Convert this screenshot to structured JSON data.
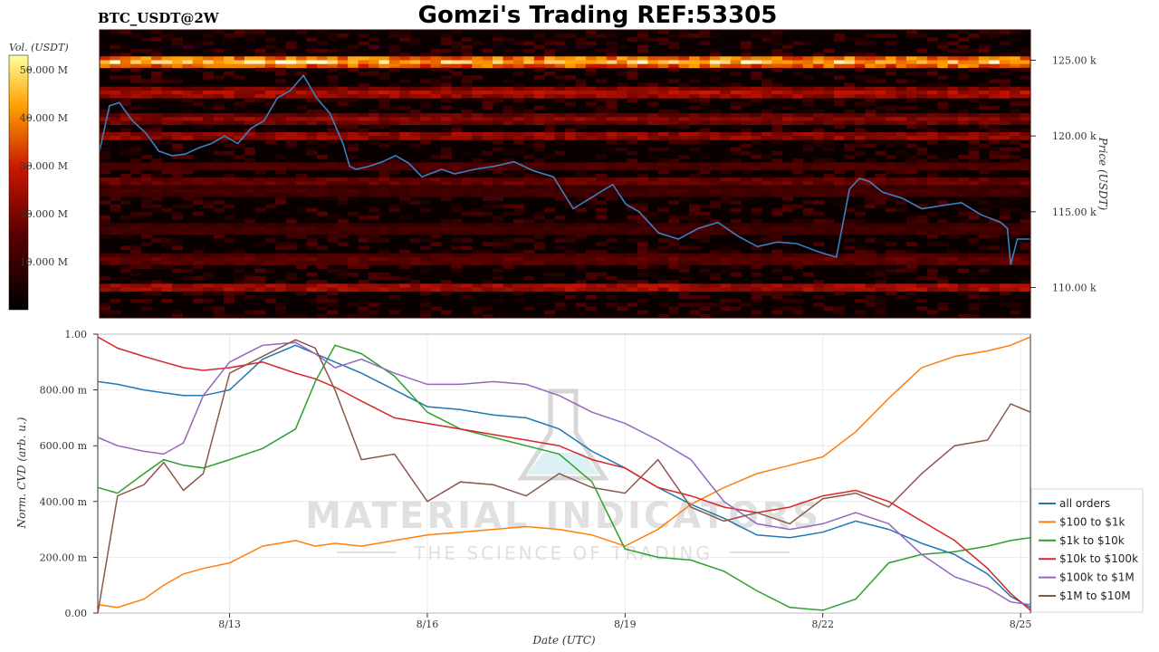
{
  "page": {
    "title": "Gomzi's Trading REF:53305",
    "pair": "BTC_USDT@2W"
  },
  "watermark": {
    "brand": "MATERIAL INDICATORS",
    "tagline": "THE SCIENCE OF TRADING"
  },
  "colors": {
    "heatmap_bg": "#0a0000",
    "price_line": "#3a7fc0"
  },
  "chart_data": [
    {
      "type": "heatmap",
      "colorbar": {
        "label": "Vol. (USDT)",
        "ticks": [
          "10.000 M",
          "20.000 M",
          "30.000 M",
          "40.000 M",
          "50.000 M"
        ],
        "tick_values": [
          10,
          20,
          30,
          40,
          50
        ],
        "range": [
          0,
          53
        ]
      },
      "ylabel": "Price (USDT)",
      "ylim": [
        108,
        127
      ],
      "yticks": [
        "110.00 k",
        "115.00 k",
        "120.00 k",
        "125.00 k"
      ],
      "ytick_values": [
        110,
        115,
        120,
        125
      ],
      "xlim": [
        0,
        14.15
      ],
      "price_series": {
        "name": "BTC price",
        "x": [
          0,
          0.15,
          0.3,
          0.5,
          0.7,
          0.9,
          1.1,
          1.3,
          1.5,
          1.7,
          1.9,
          2.1,
          2.3,
          2.5,
          2.7,
          2.9,
          3.1,
          3.3,
          3.5,
          3.7,
          3.8,
          3.9,
          4.1,
          4.3,
          4.5,
          4.7,
          4.9,
          5.2,
          5.4,
          5.7,
          6.0,
          6.3,
          6.6,
          6.9,
          7.2,
          7.5,
          7.8,
          8.0,
          8.2,
          8.5,
          8.8,
          9.1,
          9.4,
          9.7,
          10.0,
          10.3,
          10.6,
          10.9,
          11.2,
          11.4,
          11.55,
          11.7,
          11.9,
          12.2,
          12.5,
          12.8,
          13.1,
          13.4,
          13.7,
          13.8,
          13.85,
          13.95,
          14.15
        ],
        "y": [
          119.0,
          122.0,
          122.2,
          121.0,
          120.2,
          119.0,
          118.7,
          118.8,
          119.2,
          119.5,
          120.0,
          119.5,
          120.5,
          121.0,
          122.5,
          123.0,
          124.0,
          122.5,
          121.5,
          119.5,
          118.0,
          117.8,
          118.0,
          118.3,
          118.7,
          118.2,
          117.3,
          117.8,
          117.5,
          117.8,
          118.0,
          118.3,
          117.7,
          117.3,
          115.2,
          116.0,
          116.8,
          115.5,
          115.0,
          113.6,
          113.2,
          113.9,
          114.3,
          113.4,
          112.7,
          113.0,
          112.9,
          112.4,
          112.0,
          116.5,
          117.2,
          117.0,
          116.3,
          115.9,
          115.2,
          115.4,
          115.6,
          114.8,
          114.3,
          113.9,
          111.5,
          113.2,
          113.2
        ]
      },
      "bands": [
        {
          "price": 124.9,
          "intensity": 0.95
        },
        {
          "price": 122.8,
          "intensity": 0.55
        },
        {
          "price": 121.1,
          "intensity": 0.45
        },
        {
          "price": 120.0,
          "intensity": 0.5
        },
        {
          "price": 118.0,
          "intensity": 0.3
        },
        {
          "price": 117.0,
          "intensity": 0.38
        },
        {
          "price": 116.3,
          "intensity": 0.25
        },
        {
          "price": 113.8,
          "intensity": 0.25
        },
        {
          "price": 111.8,
          "intensity": 0.35
        },
        {
          "price": 110.0,
          "intensity": 0.55
        }
      ]
    },
    {
      "type": "line",
      "xlabel": "Date (UTC)",
      "ylabel": "Norm. CVD (arb. u.)",
      "ylim": [
        0,
        1
      ],
      "xlim": [
        0,
        14.15
      ],
      "yticks": [
        "0.00",
        "200.00 m",
        "400.00 m",
        "600.00 m",
        "800.00 m",
        "1.00"
      ],
      "ytick_values": [
        0,
        0.2,
        0.4,
        0.6,
        0.8,
        1.0
      ],
      "xticks": [
        "8/13",
        "8/16",
        "8/19",
        "8/22",
        "8/25"
      ],
      "xtick_values": [
        2,
        5,
        8,
        11,
        14
      ],
      "legend_position": "bottom-right",
      "x": [
        0,
        0.3,
        0.7,
        1.0,
        1.3,
        1.6,
        2.0,
        2.5,
        3.0,
        3.3,
        3.6,
        4.0,
        4.5,
        5.0,
        5.5,
        6.0,
        6.5,
        7.0,
        7.5,
        8.0,
        8.5,
        9.0,
        9.5,
        10.0,
        10.5,
        11.0,
        11.5,
        12.0,
        12.5,
        13.0,
        13.5,
        13.85,
        14.15
      ],
      "series": [
        {
          "name": "all orders",
          "color": "#1f77b4",
          "values": [
            0.83,
            0.82,
            0.8,
            0.79,
            0.78,
            0.78,
            0.8,
            0.91,
            0.96,
            0.93,
            0.9,
            0.86,
            0.8,
            0.74,
            0.73,
            0.71,
            0.7,
            0.66,
            0.58,
            0.52,
            0.45,
            0.39,
            0.34,
            0.28,
            0.27,
            0.29,
            0.33,
            0.3,
            0.25,
            0.21,
            0.14,
            0.06,
            0.02
          ]
        },
        {
          "name": "$100 to $1k",
          "color": "#ff7f0e",
          "values": [
            0.03,
            0.02,
            0.05,
            0.1,
            0.14,
            0.16,
            0.18,
            0.24,
            0.26,
            0.24,
            0.25,
            0.24,
            0.26,
            0.28,
            0.29,
            0.3,
            0.31,
            0.3,
            0.28,
            0.24,
            0.3,
            0.39,
            0.45,
            0.5,
            0.53,
            0.56,
            0.65,
            0.77,
            0.88,
            0.92,
            0.94,
            0.96,
            0.99
          ]
        },
        {
          "name": "$1k to $10k",
          "color": "#2ca02c",
          "values": [
            0.45,
            0.43,
            0.5,
            0.55,
            0.53,
            0.52,
            0.55,
            0.59,
            0.66,
            0.83,
            0.96,
            0.93,
            0.85,
            0.72,
            0.66,
            0.63,
            0.6,
            0.57,
            0.47,
            0.23,
            0.2,
            0.19,
            0.15,
            0.08,
            0.02,
            0.01,
            0.05,
            0.18,
            0.21,
            0.22,
            0.24,
            0.26,
            0.27
          ]
        },
        {
          "name": "$10k to $100k",
          "color": "#d62728",
          "values": [
            0.99,
            0.95,
            0.92,
            0.9,
            0.88,
            0.87,
            0.88,
            0.9,
            0.86,
            0.84,
            0.81,
            0.76,
            0.7,
            0.68,
            0.66,
            0.64,
            0.62,
            0.6,
            0.55,
            0.52,
            0.45,
            0.42,
            0.38,
            0.36,
            0.38,
            0.42,
            0.44,
            0.4,
            0.33,
            0.26,
            0.16,
            0.07,
            0.01
          ]
        },
        {
          "name": "$100k to $1M",
          "color": "#9467bd",
          "values": [
            0.63,
            0.6,
            0.58,
            0.57,
            0.61,
            0.78,
            0.9,
            0.96,
            0.97,
            0.93,
            0.88,
            0.91,
            0.86,
            0.82,
            0.82,
            0.83,
            0.82,
            0.78,
            0.72,
            0.68,
            0.62,
            0.55,
            0.4,
            0.32,
            0.3,
            0.32,
            0.36,
            0.32,
            0.21,
            0.13,
            0.09,
            0.04,
            0.03
          ]
        },
        {
          "name": "$1M to $10M",
          "color": "#8c564b",
          "values": [
            0.0,
            0.42,
            0.46,
            0.54,
            0.44,
            0.5,
            0.86,
            0.92,
            0.98,
            0.95,
            0.8,
            0.55,
            0.57,
            0.4,
            0.47,
            0.46,
            0.42,
            0.5,
            0.45,
            0.43,
            0.55,
            0.38,
            0.33,
            0.36,
            0.32,
            0.41,
            0.43,
            0.38,
            0.5,
            0.6,
            0.62,
            0.75,
            0.72
          ]
        }
      ]
    }
  ]
}
